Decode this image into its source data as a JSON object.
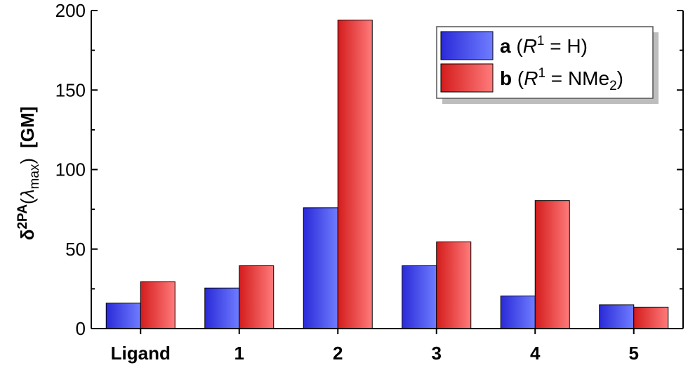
{
  "chart_data": {
    "type": "bar",
    "categories": [
      "Ligand",
      "1",
      "2",
      "3",
      "4",
      "5"
    ],
    "series": [
      {
        "name": "a (R1 = H)",
        "values": [
          16,
          25.5,
          76,
          39.5,
          20.5,
          15
        ],
        "color_dark": "#2a2ad8",
        "color_light": "#6f7dff"
      },
      {
        "name": "b (R1 = NMe2)",
        "values": [
          29.5,
          39.5,
          194,
          54.5,
          80.5,
          13.5
        ],
        "color_dark": "#d41c1c",
        "color_light": "#ff7b7b"
      }
    ],
    "ylim": [
      0,
      200
    ],
    "yticks": [
      0,
      50,
      100,
      150,
      200
    ],
    "ylabel": {
      "symbol": "δ",
      "sup": "2PA",
      "open_paren": "(",
      "lambda": "λ",
      "sub": "max",
      "close_paren": ")",
      "unit": "[GM]"
    },
    "legend": {
      "position": "top-right",
      "entries": [
        {
          "bold": "a",
          "open": " (",
          "var": "R",
          "sup": "1",
          "rest": " = H)",
          "sub": "",
          "close": ""
        },
        {
          "bold": "b",
          "open": " (",
          "var": "R",
          "sup": "1",
          "rest": " = NMe",
          "sub": "2",
          "close": ")"
        }
      ]
    },
    "grid": false
  }
}
